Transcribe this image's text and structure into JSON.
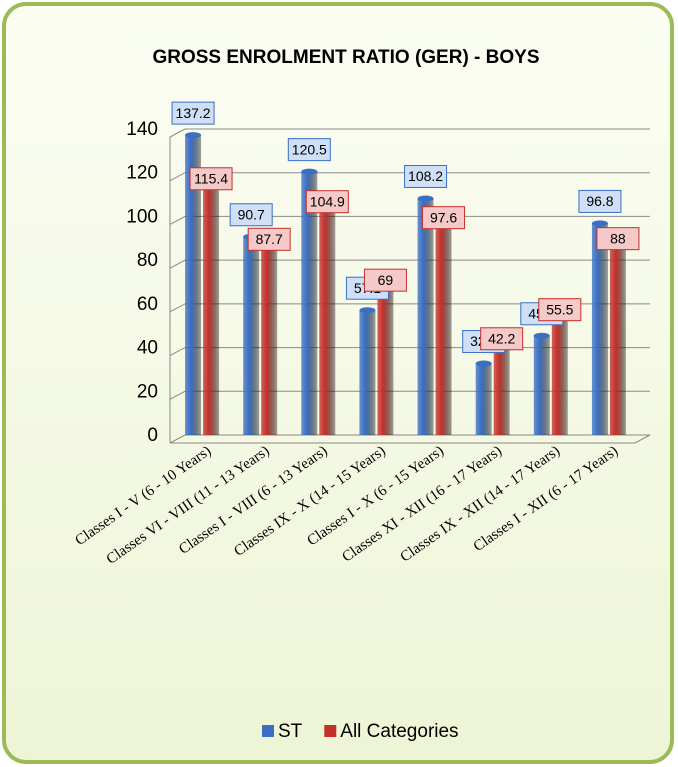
{
  "chart_data": {
    "type": "bar",
    "title": "GROSS ENROLMENT RATIO (GER) - BOYS",
    "categories": [
      "Classes I - V (6 - 10 Years)",
      "Classes VI - VIII (11 - 13 Years)",
      "Classes I - VIII (6 - 13 Years)",
      "Classes IX - X (14 - 15 Years)",
      "Classes I - X (6 - 15 Years)",
      "Classes XI - XII (16 - 17 Years)",
      "Classes IX - XII (14 - 17 Years)",
      "Classes I - XII (6 - 17 Years)"
    ],
    "series": [
      {
        "name": "ST",
        "color": "#3a6fc4",
        "values": [
          137.2,
          90.7,
          120.5,
          57.1,
          108.2,
          32.7,
          45.4,
          96.8
        ]
      },
      {
        "name": "All Categories",
        "color": "#c4302b",
        "values": [
          115.4,
          87.7,
          104.9,
          69,
          97.6,
          42.2,
          55.5,
          88
        ]
      }
    ],
    "ylim": [
      0,
      140
    ],
    "yticks": [
      0,
      20,
      40,
      60,
      80,
      100,
      120,
      140
    ],
    "grid": true,
    "legend": "bottom"
  }
}
